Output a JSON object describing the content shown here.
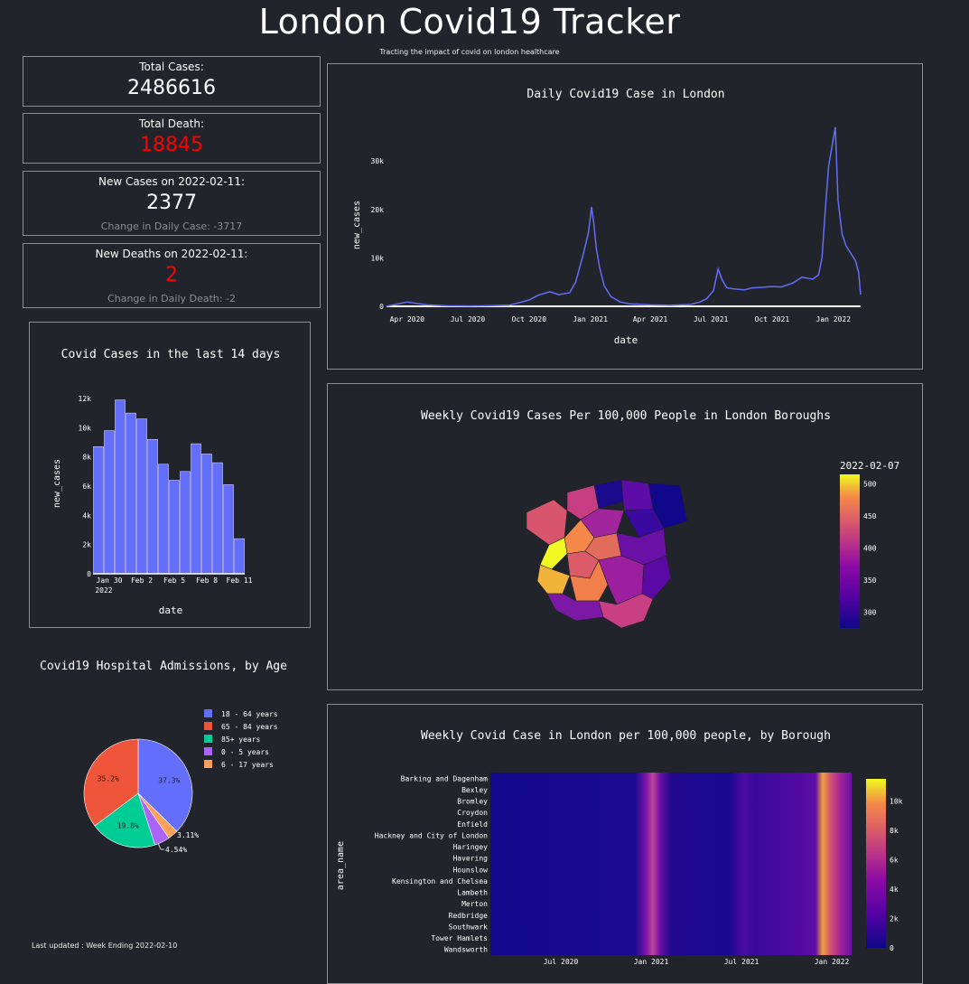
{
  "header": {
    "title": "London Covid19 Tracker",
    "subtitle": "Tracting the impact of covid on london healthcare"
  },
  "cards": {
    "total_cases_label": "Total Cases:",
    "total_cases_value": "2486616",
    "total_death_label": "Total Death:",
    "total_death_value": "18845",
    "new_cases_label": "New Cases on 2022-02-11:",
    "new_cases_value": "2377",
    "new_cases_change": "Change in Daily Case: -3717",
    "new_deaths_label": "New Deaths on 2022-02-11:",
    "new_deaths_value": "2",
    "new_deaths_change": "Change in Daily Death: -2"
  },
  "footer": {
    "last_updated": "Last updated : Week Ending 2022-02-10"
  },
  "colors": {
    "background": "#22242b",
    "bar": "#636efa",
    "line": "#636efa",
    "alert": "#ff0000",
    "border": "#8b8d92"
  },
  "chart_data": [
    {
      "id": "daily",
      "type": "line",
      "title": "Daily Covid19 Case in London",
      "xlabel": "date",
      "ylabel": "new_cases",
      "x_tick_labels": [
        "Apr 2020",
        "Jul 2020",
        "Oct 2020",
        "Jan 2021",
        "Apr 2021",
        "Jul 2021",
        "Oct 2021",
        "Jan 2022"
      ],
      "y_tick_labels": [
        "0",
        "10k",
        "20k",
        "30k"
      ],
      "ylim": [
        0,
        36000
      ],
      "x": [
        "2020-03-01",
        "2020-03-15",
        "2020-04-01",
        "2020-04-15",
        "2020-05-01",
        "2020-06-01",
        "2020-07-01",
        "2020-08-01",
        "2020-09-01",
        "2020-09-15",
        "2020-10-01",
        "2020-10-15",
        "2020-11-01",
        "2020-11-15",
        "2020-12-01",
        "2020-12-10",
        "2020-12-20",
        "2020-12-29",
        "2021-01-03",
        "2021-01-06",
        "2021-01-10",
        "2021-01-15",
        "2021-01-22",
        "2021-02-01",
        "2021-02-15",
        "2021-03-01",
        "2021-04-01",
        "2021-05-01",
        "2021-06-01",
        "2021-06-15",
        "2021-06-25",
        "2021-07-05",
        "2021-07-12",
        "2021-07-18",
        "2021-07-25",
        "2021-08-05",
        "2021-08-20",
        "2021-09-01",
        "2021-09-15",
        "2021-10-01",
        "2021-10-15",
        "2021-11-01",
        "2021-11-15",
        "2021-12-01",
        "2021-12-10",
        "2021-12-15",
        "2021-12-20",
        "2021-12-25",
        "2021-12-30",
        "2022-01-04",
        "2022-01-08",
        "2022-01-14",
        "2022-01-20",
        "2022-01-27",
        "2022-02-03",
        "2022-02-08",
        "2022-02-11"
      ],
      "y": [
        10,
        400,
        900,
        600,
        300,
        100,
        80,
        120,
        250,
        700,
        1300,
        2300,
        3000,
        2400,
        2800,
        5000,
        10000,
        15000,
        20500,
        17500,
        12000,
        8000,
        4200,
        2000,
        900,
        500,
        300,
        200,
        400,
        900,
        1600,
        3200,
        7700,
        5500,
        3800,
        3600,
        3400,
        3800,
        3900,
        4100,
        4000,
        4800,
        6000,
        5600,
        6500,
        10000,
        20000,
        29000,
        33000,
        37000,
        22000,
        15000,
        12500,
        11000,
        9500,
        7000,
        2400
      ]
    },
    {
      "id": "last14",
      "type": "bar",
      "title": "Covid Cases in the last 14 days",
      "xlabel": "date",
      "ylabel": "new_cases",
      "x_tick_labels": [
        "Jan 30",
        "Feb 2",
        "Feb 5",
        "Feb 8",
        "Feb 11"
      ],
      "x_tick_sublabel": "2022",
      "y_tick_labels": [
        "0",
        "2k",
        "4k",
        "6k",
        "8k",
        "10k",
        "12k"
      ],
      "ylim": [
        0,
        12000
      ],
      "categories": [
        "2022-01-29",
        "2022-01-30",
        "2022-01-31",
        "2022-02-01",
        "2022-02-02",
        "2022-02-03",
        "2022-02-04",
        "2022-02-05",
        "2022-02-06",
        "2022-02-07",
        "2022-02-08",
        "2022-02-09",
        "2022-02-10",
        "2022-02-11"
      ],
      "values": [
        8700,
        9800,
        11900,
        11000,
        10600,
        9200,
        7500,
        6400,
        7000,
        8900,
        8200,
        7600,
        6100,
        2400
      ]
    },
    {
      "id": "admissions",
      "type": "pie",
      "title": "Covid19 Hospital Admissions, by Age",
      "labels": [
        "18 - 64 years",
        "65 - 84 years",
        "85+ years",
        "0 - 5 years",
        "6 - 17 years"
      ],
      "values": [
        37.3,
        35.2,
        19.8,
        4.54,
        3.11
      ],
      "slice_labels": [
        "37.3%",
        "35.2%",
        "19.8%",
        "4.54%",
        "3.11%"
      ],
      "colors": [
        "#636efa",
        "#ef553b",
        "#00cc96",
        "#ab63fa",
        "#ffa15a"
      ]
    },
    {
      "id": "heatmap",
      "type": "heatmap",
      "title": "Weekly Covid Case in London per 100,000 people, by Borough",
      "ylabel": "area_name",
      "rows": [
        "Barking and Dagenham",
        "Bexley",
        "Bromley",
        "Croydon",
        "Enfield",
        "Hackney and City of London",
        "Haringey",
        "Havering",
        "Hounslow",
        "Kensington and Chelsea",
        "Lambeth",
        "Merton",
        "Redbridge",
        "Southwark",
        "Tower Hamlets",
        "Wandsworth"
      ],
      "x_tick_labels": [
        "Jul 2020",
        "Jan 2021",
        "Jul 2021",
        "Jan 2022"
      ],
      "colorbar_ticks": [
        "0",
        "2k",
        "4k",
        "6k",
        "8k",
        "10k"
      ],
      "zlim": [
        0,
        11500
      ]
    },
    {
      "id": "map",
      "type": "heatmap",
      "title": "Weekly Covid19 Cases Per 100,000 People in London Boroughs",
      "colorbar_title": "2022-02-07",
      "colorbar_ticks": [
        "300",
        "350",
        "400",
        "450",
        "500"
      ],
      "zlim": [
        275,
        515
      ]
    }
  ]
}
